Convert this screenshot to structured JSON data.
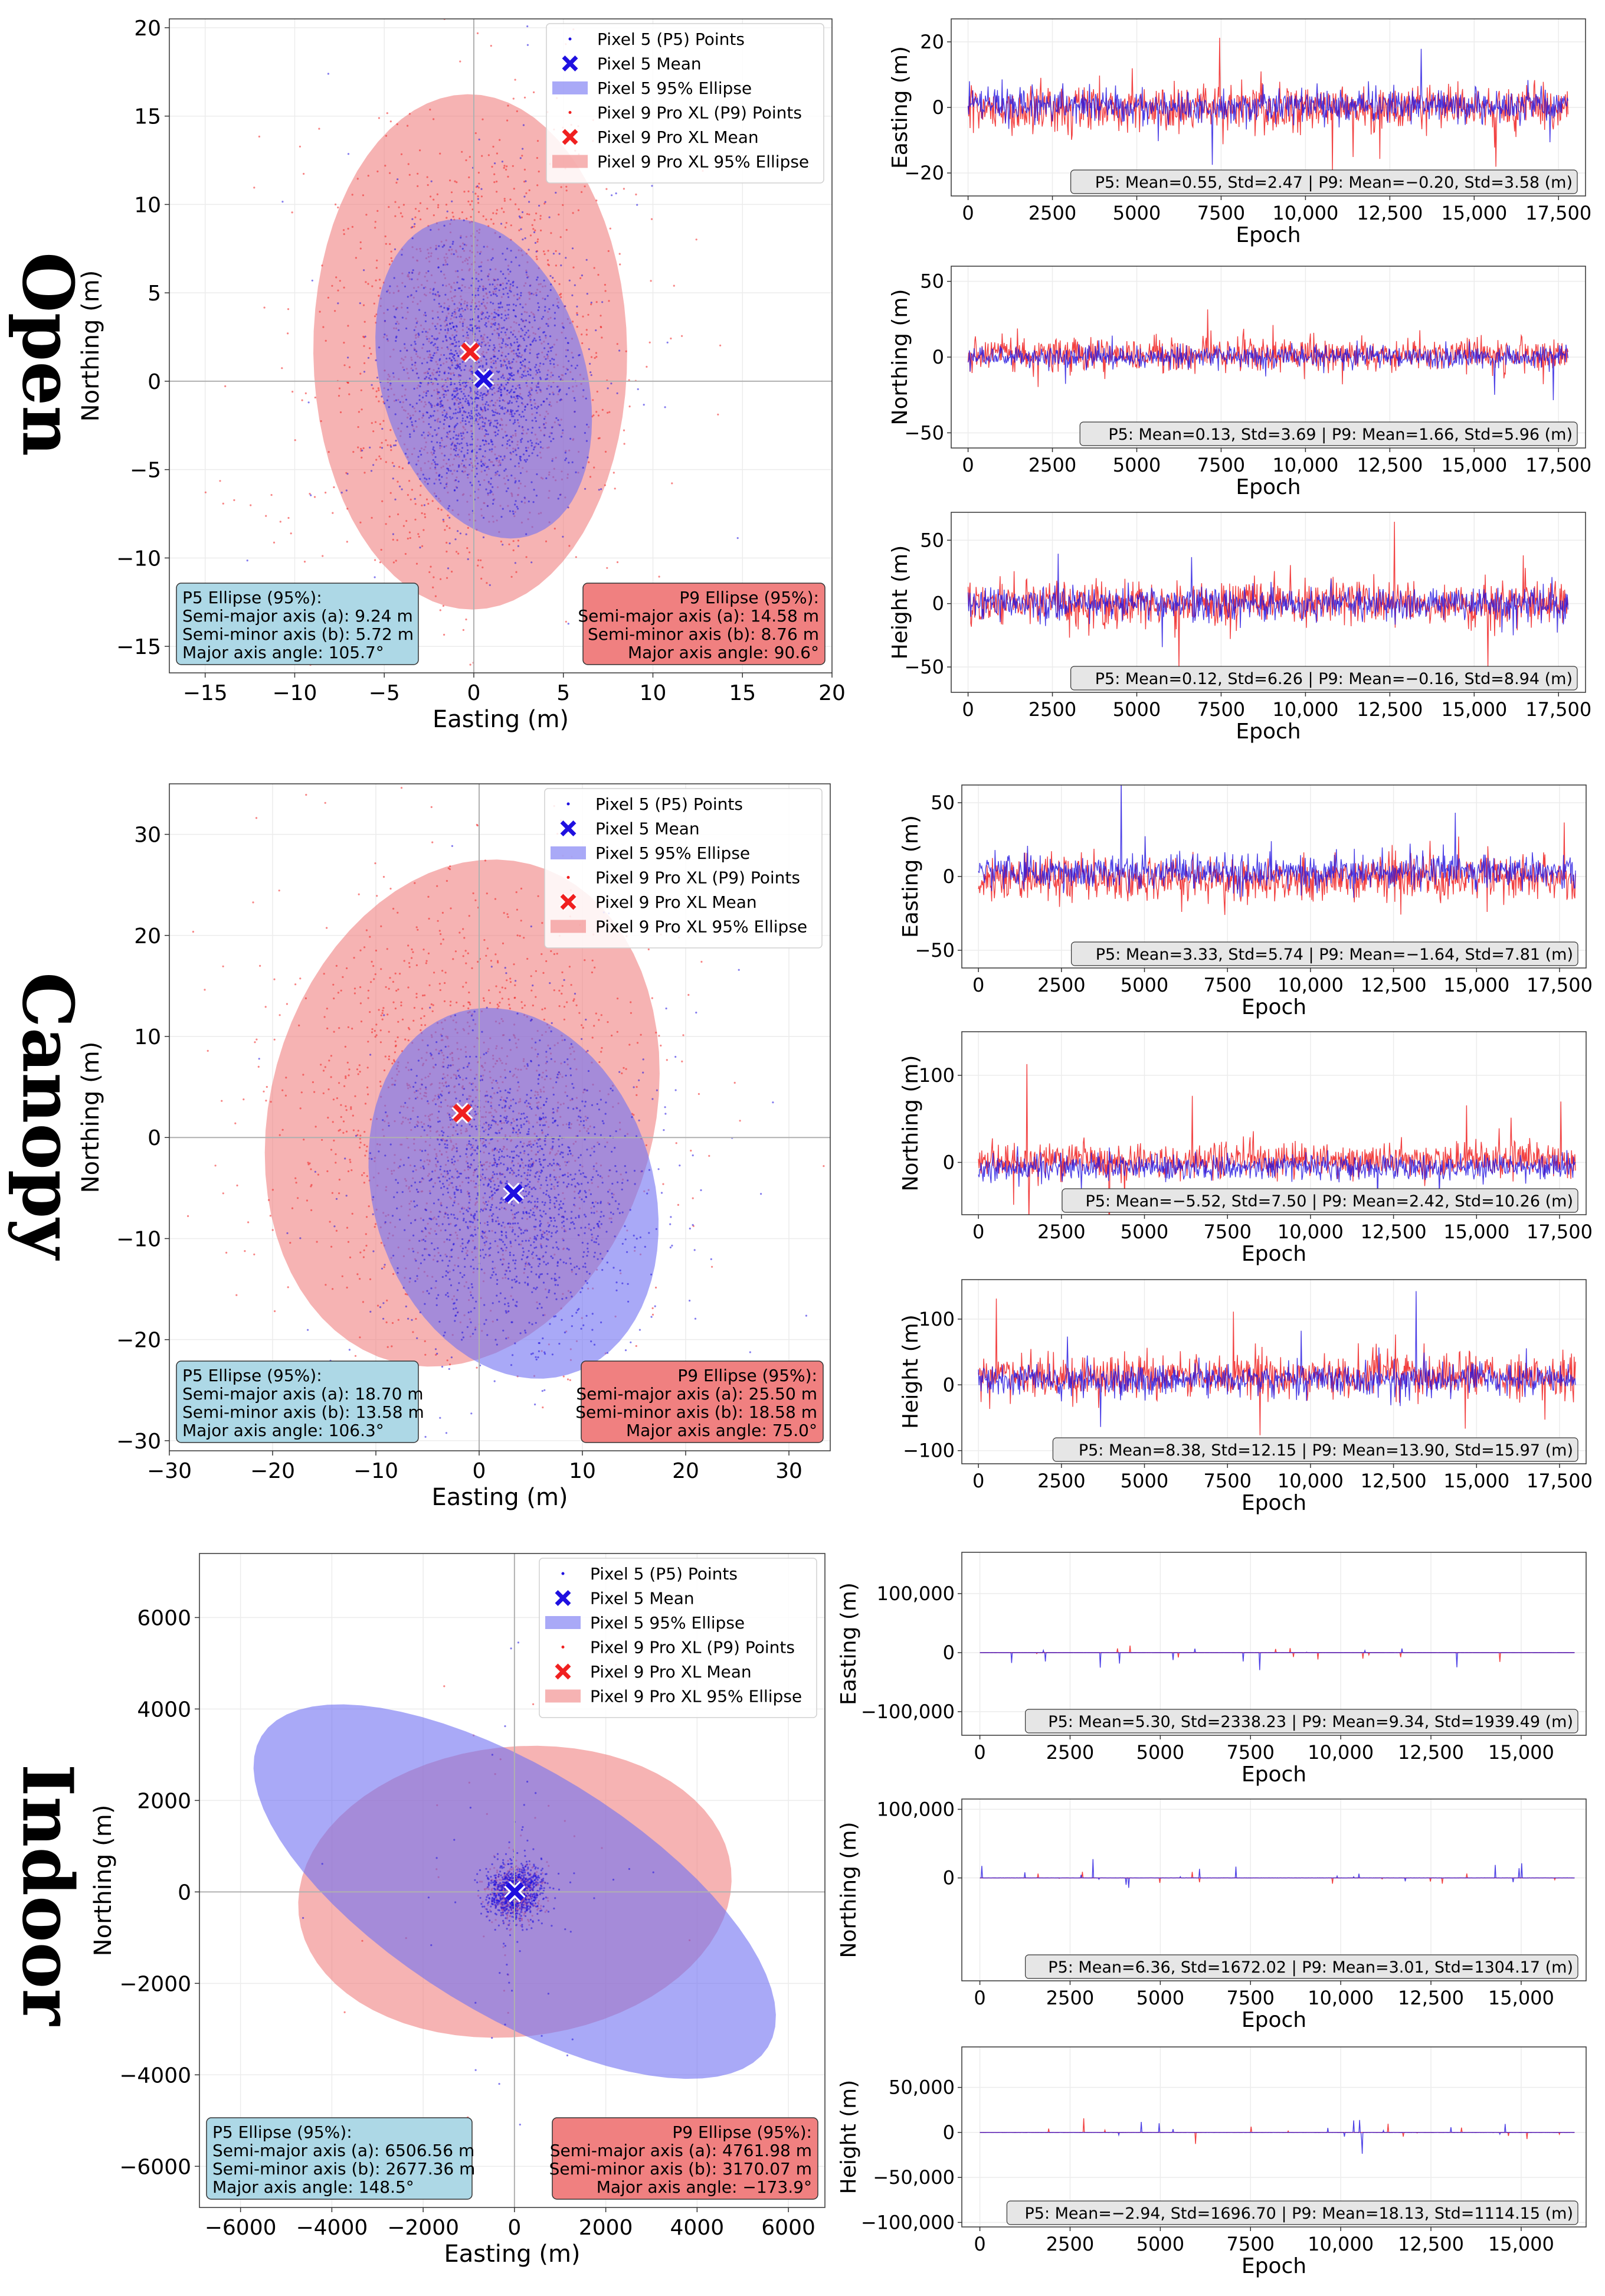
{
  "colors": {
    "p5": "#1f10e0",
    "p9": "#f02020",
    "p5_fill": "#6f6ff2",
    "p9_fill": "#f08080",
    "p5_box": "#add8e6",
    "p9_box": "#f08080",
    "stat_box": "#e6e6e6"
  },
  "legend": [
    {
      "key": "p5_points",
      "label": "Pixel 5 (P5) Points"
    },
    {
      "key": "p5_mean",
      "label": "Pixel 5 Mean"
    },
    {
      "key": "p5_ellipse",
      "label": "Pixel 5 95% Ellipse"
    },
    {
      "key": "p9_points",
      "label": "Pixel 9 Pro XL (P9) Points"
    },
    {
      "key": "p9_mean",
      "label": "Pixel 9 Pro XL Mean"
    },
    {
      "key": "p9_ellipse",
      "label": "Pixel 9 Pro XL 95% Ellipse"
    }
  ],
  "chart_data": [
    {
      "name": "Open",
      "row_label": "Open",
      "scatter": {
        "type": "scatter",
        "xlabel": "Easting (m)",
        "ylabel": "Northing (m)",
        "xlim": [
          -17,
          20
        ],
        "ylim": [
          -16.5,
          20.5
        ],
        "xticks": [
          -15,
          -10,
          -5,
          0,
          5,
          10,
          15,
          20
        ],
        "yticks": [
          -15,
          -10,
          -5,
          0,
          5,
          10,
          15,
          20
        ],
        "xtick_labels": [
          "−15",
          "−10",
          "−5",
          "0",
          "5",
          "10",
          "15",
          "20"
        ],
        "ytick_labels": [
          "−15",
          "−10",
          "−5",
          "0",
          "5",
          "10",
          "15",
          "20"
        ],
        "p5_mean": [
          0.55,
          0.13
        ],
        "p9_mean": [
          -0.2,
          1.66
        ],
        "p5_ellipse": {
          "a": 9.24,
          "b": 5.72,
          "angle": 105.7
        },
        "p9_ellipse": {
          "a": 14.58,
          "b": 8.76,
          "angle": 90.6
        },
        "p5_spread": [
          2.47,
          3.69
        ],
        "p9_spread": [
          3.58,
          5.96
        ],
        "p5_box_lines": [
          "P5 Ellipse (95%):",
          "Semi-major axis (a): 9.24 m",
          "Semi-minor axis (b): 5.72 m",
          "Major axis angle: 105.7°"
        ],
        "p9_box_lines": [
          "P9 Ellipse (95%):",
          "Semi-major axis (a): 14.58 m",
          "Semi-minor axis (b): 8.76 m",
          "Major axis angle: 90.6°"
        ]
      },
      "series": [
        {
          "ylabel": "Easting (m)",
          "ylim": [
            -27,
            27
          ],
          "yticks": [
            -20,
            0,
            20
          ],
          "ytick_labels": [
            "−20",
            "0",
            "20"
          ],
          "xlim": [
            -500,
            18300
          ],
          "xticks": [
            0,
            2500,
            5000,
            7500,
            10000,
            12500,
            15000,
            17500
          ],
          "xtick_labels": [
            "0",
            "2500",
            "5000",
            "7500",
            "10,000",
            "12,500",
            "15,000",
            "17,500"
          ],
          "n": 17800,
          "p5_mean": 0.55,
          "p5_std": 2.47,
          "p9_mean": -0.2,
          "p9_std": 3.58,
          "stat": "P5: Mean=0.55, Std=2.47 | P9: Mean=−0.20, Std=3.58 (m)",
          "xlabel": "Epoch"
        },
        {
          "ylabel": "Northing (m)",
          "ylim": [
            -60,
            60
          ],
          "yticks": [
            -50,
            0,
            50
          ],
          "ytick_labels": [
            "−50",
            "0",
            "50"
          ],
          "xlim": [
            -500,
            18300
          ],
          "xticks": [
            0,
            2500,
            5000,
            7500,
            10000,
            12500,
            15000,
            17500
          ],
          "xtick_labels": [
            "0",
            "2500",
            "5000",
            "7500",
            "10,000",
            "12,500",
            "15,000",
            "17,500"
          ],
          "n": 17800,
          "p5_mean": 0.13,
          "p5_std": 3.69,
          "p9_mean": 1.66,
          "p9_std": 5.96,
          "stat": "P5: Mean=0.13, Std=3.69 | P9: Mean=1.66, Std=5.96 (m)",
          "xlabel": "Epoch"
        },
        {
          "ylabel": "Height (m)",
          "ylim": [
            -70,
            72
          ],
          "yticks": [
            -50,
            0,
            50
          ],
          "ytick_labels": [
            "−50",
            "0",
            "50"
          ],
          "xlim": [
            -500,
            18300
          ],
          "xticks": [
            0,
            2500,
            5000,
            7500,
            10000,
            12500,
            15000,
            17500
          ],
          "xtick_labels": [
            "0",
            "2500",
            "5000",
            "7500",
            "10,000",
            "12,500",
            "15,000",
            "17,500"
          ],
          "n": 17800,
          "p5_mean": 0.12,
          "p5_std": 6.26,
          "p9_mean": -0.16,
          "p9_std": 8.94,
          "stat": "P5: Mean=0.12, Std=6.26 | P9: Mean=−0.16, Std=8.94 (m)",
          "xlabel": "Epoch"
        }
      ]
    },
    {
      "name": "Canopy",
      "row_label": "Canopy",
      "scatter": {
        "type": "scatter",
        "xlabel": "Easting (m)",
        "ylabel": "Northing (m)",
        "xlim": [
          -30,
          34
        ],
        "ylim": [
          -31,
          35
        ],
        "xticks": [
          -30,
          -20,
          -10,
          0,
          10,
          20,
          30
        ],
        "yticks": [
          -30,
          -20,
          -10,
          0,
          10,
          20,
          30
        ],
        "xtick_labels": [
          "−30",
          "−20",
          "−10",
          "0",
          "10",
          "20",
          "30"
        ],
        "ytick_labels": [
          "−30",
          "−20",
          "−10",
          "0",
          "10",
          "20",
          "30"
        ],
        "p5_mean": [
          3.33,
          -5.52
        ],
        "p9_mean": [
          -1.64,
          2.42
        ],
        "p5_ellipse": {
          "a": 18.7,
          "b": 13.58,
          "angle": 106.3
        },
        "p9_ellipse": {
          "a": 25.5,
          "b": 18.58,
          "angle": 75.0
        },
        "p5_spread": [
          5.74,
          7.5
        ],
        "p9_spread": [
          7.81,
          10.26
        ],
        "p5_box_lines": [
          "P5 Ellipse (95%):",
          "Semi-major axis (a): 18.70 m",
          "Semi-minor axis (b): 13.58 m",
          "Major axis angle: 106.3°"
        ],
        "p9_box_lines": [
          "P9 Ellipse (95%):",
          "Semi-major axis (a): 25.50 m",
          "Semi-minor axis (b): 18.58 m",
          "Major axis angle: 75.0°"
        ]
      },
      "series": [
        {
          "ylabel": "Easting (m)",
          "ylim": [
            -62,
            62
          ],
          "yticks": [
            -50,
            0,
            50
          ],
          "ytick_labels": [
            "−50",
            "0",
            "50"
          ],
          "xlim": [
            -500,
            18300
          ],
          "xticks": [
            0,
            2500,
            5000,
            7500,
            10000,
            12500,
            15000,
            17500
          ],
          "xtick_labels": [
            "0",
            "2500",
            "5000",
            "7500",
            "10,000",
            "12,500",
            "15,000",
            "17,500"
          ],
          "n": 18000,
          "p5_mean": 3.33,
          "p5_std": 5.74,
          "p9_mean": -1.64,
          "p9_std": 7.81,
          "stat": "P5: Mean=3.33, Std=5.74 | P9: Mean=−1.64, Std=7.81 (m)",
          "xlabel": "Epoch"
        },
        {
          "ylabel": "Northing (m)",
          "ylim": [
            -60,
            150
          ],
          "yticks": [
            0,
            100
          ],
          "ytick_labels": [
            "0",
            "100"
          ],
          "xlim": [
            -500,
            18300
          ],
          "xticks": [
            0,
            2500,
            5000,
            7500,
            10000,
            12500,
            15000,
            17500
          ],
          "xtick_labels": [
            "0",
            "2500",
            "5000",
            "7500",
            "10,000",
            "12,500",
            "15,000",
            "17,500"
          ],
          "n": 18000,
          "p5_mean": -5.52,
          "p5_std": 7.5,
          "p9_mean": 2.42,
          "p9_std": 10.26,
          "stat": "P5: Mean=−5.52, Std=7.50 | P9: Mean=2.42, Std=10.26 (m)",
          "xlabel": "Epoch"
        },
        {
          "ylabel": "Height (m)",
          "ylim": [
            -120,
            160
          ],
          "yticks": [
            -100,
            0,
            100
          ],
          "ytick_labels": [
            "−100",
            "0",
            "100"
          ],
          "xlim": [
            -500,
            18300
          ],
          "xticks": [
            0,
            2500,
            5000,
            7500,
            10000,
            12500,
            15000,
            17500
          ],
          "xtick_labels": [
            "0",
            "2500",
            "5000",
            "7500",
            "10,000",
            "12,500",
            "15,000",
            "17,500"
          ],
          "n": 18000,
          "p5_mean": 8.38,
          "p5_std": 12.15,
          "p9_mean": 13.9,
          "p9_std": 15.97,
          "stat": "P5: Mean=8.38, Std=12.15 | P9: Mean=13.90, Std=15.97 (m)",
          "xlabel": "Epoch"
        }
      ]
    },
    {
      "name": "Indoor",
      "row_label": "Indoor",
      "scatter": {
        "type": "scatter",
        "xlabel": "Easting (m)",
        "ylabel": "Northing (m)",
        "xlim": [
          -6900,
          6800
        ],
        "ylim": [
          -6900,
          7400
        ],
        "xticks": [
          -6000,
          -4000,
          -2000,
          0,
          2000,
          4000,
          6000
        ],
        "yticks": [
          -6000,
          -4000,
          -2000,
          0,
          2000,
          4000,
          6000
        ],
        "xtick_labels": [
          "−6000",
          "−4000",
          "−2000",
          "0",
          "2000",
          "4000",
          "6000"
        ],
        "ytick_labels": [
          "−6000",
          "−4000",
          "−2000",
          "0",
          "2000",
          "4000",
          "6000"
        ],
        "p5_mean": [
          5.3,
          6.36
        ],
        "p9_mean": [
          9.34,
          3.01
        ],
        "p5_ellipse": {
          "a": 6506.56,
          "b": 2677.36,
          "angle": 148.5
        },
        "p9_ellipse": {
          "a": 4761.98,
          "b": 3170.07,
          "angle": -173.9
        },
        "p5_spread": [
          300,
          300
        ],
        "p9_spread": [
          250,
          250
        ],
        "p5_box_lines": [
          "P5 Ellipse (95%):",
          "Semi-major axis (a): 6506.56 m",
          "Semi-minor axis (b): 2677.36 m",
          "Major axis angle: 148.5°"
        ],
        "p9_box_lines": [
          "P9 Ellipse (95%):",
          "Semi-major axis (a): 4761.98 m",
          "Semi-minor axis (b): 3170.07 m",
          "Major axis angle: −173.9°"
        ]
      },
      "series": [
        {
          "ylabel": "Easting (m)",
          "ylim": [
            -140000,
            170000
          ],
          "yticks": [
            -100000,
            0,
            100000
          ],
          "ytick_labels": [
            "−100,000",
            "0",
            "100,000"
          ],
          "xlim": [
            -500,
            16800
          ],
          "xticks": [
            0,
            2500,
            5000,
            7500,
            10000,
            12500,
            15000
          ],
          "xtick_labels": [
            "0",
            "2500",
            "5000",
            "7500",
            "10,000",
            "12,500",
            "15,000"
          ],
          "n": 16500,
          "p5_mean": 5.3,
          "p5_std": 2338.23,
          "p9_mean": 9.34,
          "p9_std": 1939.49,
          "stat": "P5: Mean=5.30, Std=2338.23 | P9: Mean=9.34, Std=1939.49 (m)",
          "xlabel": "Epoch"
        },
        {
          "ylabel": "Northing (m)",
          "ylim": [
            -150000,
            115000
          ],
          "yticks": [
            0,
            100000
          ],
          "ytick_labels": [
            "0",
            "100,000"
          ],
          "xlim": [
            -500,
            16800
          ],
          "xticks": [
            0,
            2500,
            5000,
            7500,
            10000,
            12500,
            15000
          ],
          "xtick_labels": [
            "0",
            "2500",
            "5000",
            "7500",
            "10,000",
            "12,500",
            "15,000"
          ],
          "n": 16500,
          "p5_mean": 6.36,
          "p5_std": 1672.02,
          "p9_mean": 3.01,
          "p9_std": 1304.17,
          "stat": "P5: Mean=6.36, Std=1672.02 | P9: Mean=3.01, Std=1304.17 (m)",
          "xlabel": "Epoch"
        },
        {
          "ylabel": "Height (m)",
          "ylim": [
            -105000,
            95000
          ],
          "yticks": [
            -100000,
            -50000,
            0,
            50000
          ],
          "ytick_labels": [
            "−100,000",
            "−50,000",
            "0",
            "50,000"
          ],
          "xlim": [
            -500,
            16800
          ],
          "xticks": [
            0,
            2500,
            5000,
            7500,
            10000,
            12500,
            15000
          ],
          "xtick_labels": [
            "0",
            "2500",
            "5000",
            "7500",
            "10,000",
            "12,500",
            "15,000"
          ],
          "n": 16500,
          "p5_mean": -2.94,
          "p5_std": 1696.7,
          "p9_mean": 18.13,
          "p9_std": 1114.15,
          "stat": "P5: Mean=−2.94, Std=1696.70 | P9: Mean=18.13, Std=1114.15 (m)",
          "xlabel": "Epoch"
        }
      ]
    }
  ]
}
